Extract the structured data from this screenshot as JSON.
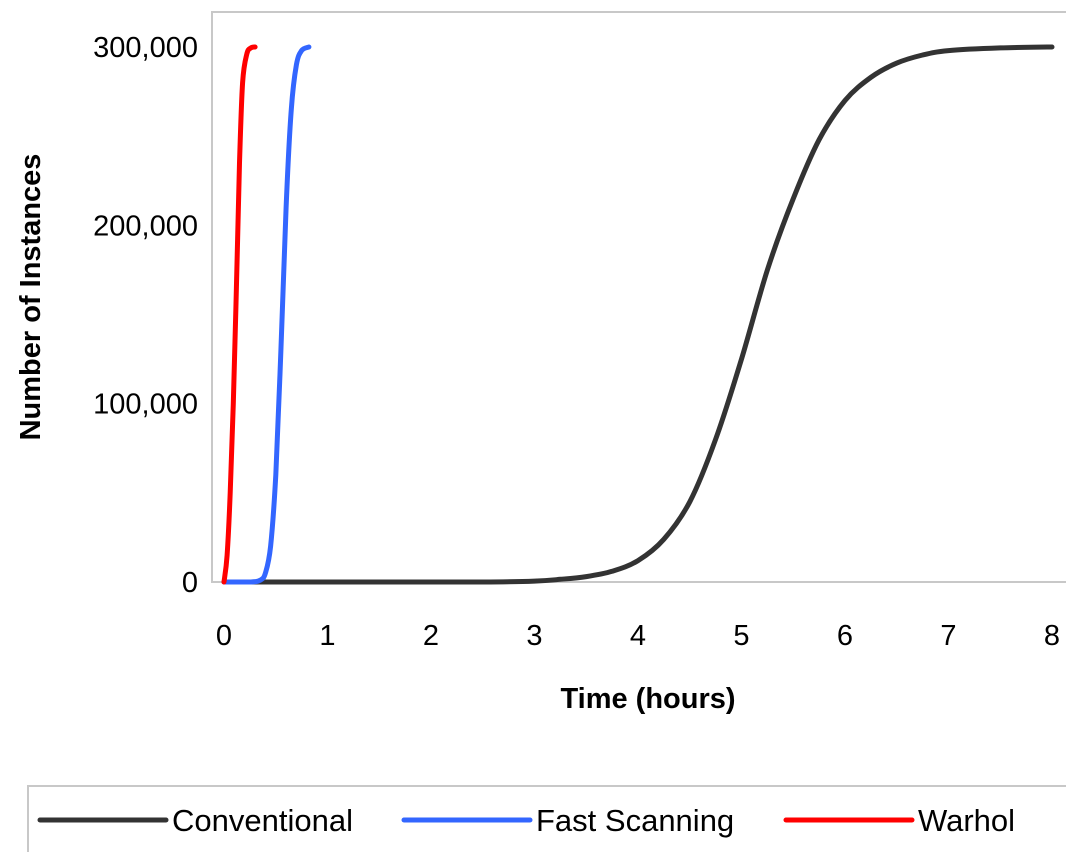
{
  "chart_data": {
    "type": "line",
    "title": "",
    "xlabel": "Time (hours)",
    "ylabel": "Number of Instances",
    "xlim": [
      0,
      8
    ],
    "ylim": [
      0,
      300000
    ],
    "x_ticks": [
      0,
      1,
      2,
      3,
      4,
      5,
      6,
      7,
      8
    ],
    "x_tick_labels": [
      "0",
      "1",
      "2",
      "3",
      "4",
      "5",
      "6",
      "7",
      "8"
    ],
    "y_ticks": [
      0,
      100000,
      200000,
      300000
    ],
    "y_tick_labels": [
      "0",
      "100,000",
      "200,000",
      "300,000"
    ],
    "grid": false,
    "legend_position": "bottom",
    "series": [
      {
        "name": "Conventional",
        "color": "#333333",
        "points": [
          [
            0,
            0
          ],
          [
            0.5,
            0
          ],
          [
            1,
            0
          ],
          [
            1.5,
            0
          ],
          [
            2,
            0
          ],
          [
            2.5,
            0
          ],
          [
            3,
            500
          ],
          [
            3.25,
            1500
          ],
          [
            3.5,
            3000
          ],
          [
            3.75,
            6000
          ],
          [
            4,
            12000
          ],
          [
            4.25,
            24000
          ],
          [
            4.5,
            45000
          ],
          [
            4.75,
            80000
          ],
          [
            5,
            125000
          ],
          [
            5.25,
            175000
          ],
          [
            5.5,
            215000
          ],
          [
            5.75,
            248000
          ],
          [
            6,
            270000
          ],
          [
            6.25,
            283000
          ],
          [
            6.5,
            291000
          ],
          [
            6.75,
            295500
          ],
          [
            7,
            298000
          ],
          [
            7.5,
            299500
          ],
          [
            8,
            300000
          ]
        ]
      },
      {
        "name": "Fast Scanning",
        "color": "#3366ff",
        "points": [
          [
            0,
            0
          ],
          [
            0.25,
            0
          ],
          [
            0.35,
            1000
          ],
          [
            0.4,
            5000
          ],
          [
            0.45,
            20000
          ],
          [
            0.5,
            60000
          ],
          [
            0.55,
            130000
          ],
          [
            0.6,
            210000
          ],
          [
            0.65,
            265000
          ],
          [
            0.7,
            290000
          ],
          [
            0.75,
            298000
          ],
          [
            0.82,
            300000
          ]
        ]
      },
      {
        "name": "Warhol",
        "color": "#ff0000",
        "points": [
          [
            0,
            0
          ],
          [
            0.03,
            15000
          ],
          [
            0.06,
            50000
          ],
          [
            0.09,
            100000
          ],
          [
            0.12,
            165000
          ],
          [
            0.15,
            235000
          ],
          [
            0.18,
            280000
          ],
          [
            0.22,
            296000
          ],
          [
            0.26,
            299500
          ],
          [
            0.3,
            300000
          ]
        ]
      }
    ]
  }
}
